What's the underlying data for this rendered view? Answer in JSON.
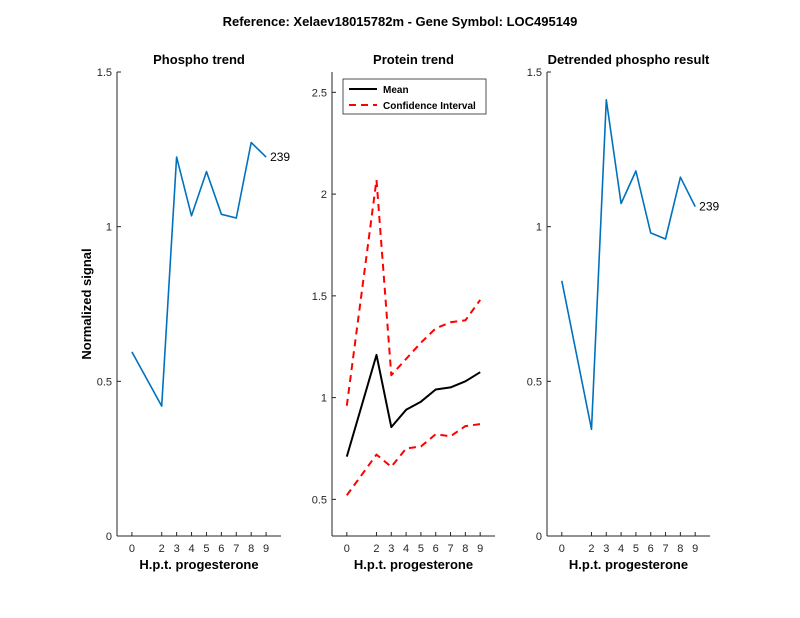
{
  "suptitle": "Reference:  Xelaev18015782m - Gene Symbol:  LOC495149",
  "colors": {
    "line": "#0072BD",
    "mean": "#000000",
    "ci": "#FF0000",
    "axis": "#262626"
  },
  "chart_data": [
    {
      "type": "line",
      "title": "Phospho trend",
      "xlabel": "H.p.t. progesterone",
      "ylabel": "Normalized signal",
      "xlim": [
        -1,
        10
      ],
      "ylim": [
        0,
        1.5
      ],
      "xticks": [
        0,
        2,
        3,
        4,
        5,
        6,
        7,
        8,
        9
      ],
      "yticks": [
        0,
        0.5,
        1,
        1.5
      ],
      "ytick_labels": [
        "0",
        "0.5",
        "1",
        "1.5"
      ],
      "series": [
        {
          "name": "phospho",
          "x": [
            0,
            2,
            3,
            4,
            5,
            6,
            7,
            8,
            9
          ],
          "y": [
            0.595,
            0.42,
            1.225,
            1.035,
            1.178,
            1.04,
            1.028,
            1.272,
            1.225
          ]
        }
      ],
      "annotation": {
        "text": "239",
        "x": 9,
        "y": 1.225
      }
    },
    {
      "type": "line",
      "title": "Protein trend",
      "xlabel": "H.p.t. progesterone",
      "ylabel": "",
      "xlim": [
        -1,
        10
      ],
      "ylim": [
        0.32,
        2.6
      ],
      "xticks": [
        0,
        2,
        3,
        4,
        5,
        6,
        7,
        8,
        9
      ],
      "yticks": [
        0.5,
        1,
        1.5,
        2,
        2.5
      ],
      "ytick_labels": [
        "0.5",
        "1",
        "1.5",
        "2",
        "2.5"
      ],
      "legend": {
        "position": "top-left",
        "entries": [
          "Mean",
          "Confidence Interval"
        ]
      },
      "series": [
        {
          "name": "Mean",
          "x": [
            0,
            2,
            3,
            4,
            5,
            6,
            7,
            8,
            9
          ],
          "y": [
            0.71,
            1.21,
            0.855,
            0.94,
            0.98,
            1.04,
            1.05,
            1.08,
            1.125
          ]
        },
        {
          "name": "Confidence Interval upper",
          "x": [
            0,
            2,
            3,
            4,
            5,
            6,
            7,
            8,
            9
          ],
          "y": [
            0.96,
            2.07,
            1.11,
            1.19,
            1.27,
            1.34,
            1.37,
            1.38,
            1.48
          ]
        },
        {
          "name": "Confidence Interval lower",
          "x": [
            0,
            2,
            3,
            4,
            5,
            6,
            7,
            8,
            9
          ],
          "y": [
            0.52,
            0.72,
            0.66,
            0.75,
            0.76,
            0.82,
            0.81,
            0.86,
            0.87
          ]
        }
      ]
    },
    {
      "type": "line",
      "title": "Detrended phospho result",
      "xlabel": "H.p.t. progesterone",
      "ylabel": "",
      "xlim": [
        -1,
        10
      ],
      "ylim": [
        0,
        1.5
      ],
      "xticks": [
        0,
        2,
        3,
        4,
        5,
        6,
        7,
        8,
        9
      ],
      "yticks": [
        0,
        0.5,
        1,
        1.5
      ],
      "ytick_labels": [
        "0",
        "0.5",
        "1",
        "1.5"
      ],
      "series": [
        {
          "name": "detrended",
          "x": [
            0,
            2,
            3,
            4,
            5,
            6,
            7,
            8,
            9
          ],
          "y": [
            0.825,
            0.345,
            1.41,
            1.075,
            1.18,
            0.98,
            0.96,
            1.16,
            1.065
          ]
        }
      ],
      "annotation": {
        "text": "239",
        "x": 9,
        "y": 1.065
      }
    }
  ]
}
